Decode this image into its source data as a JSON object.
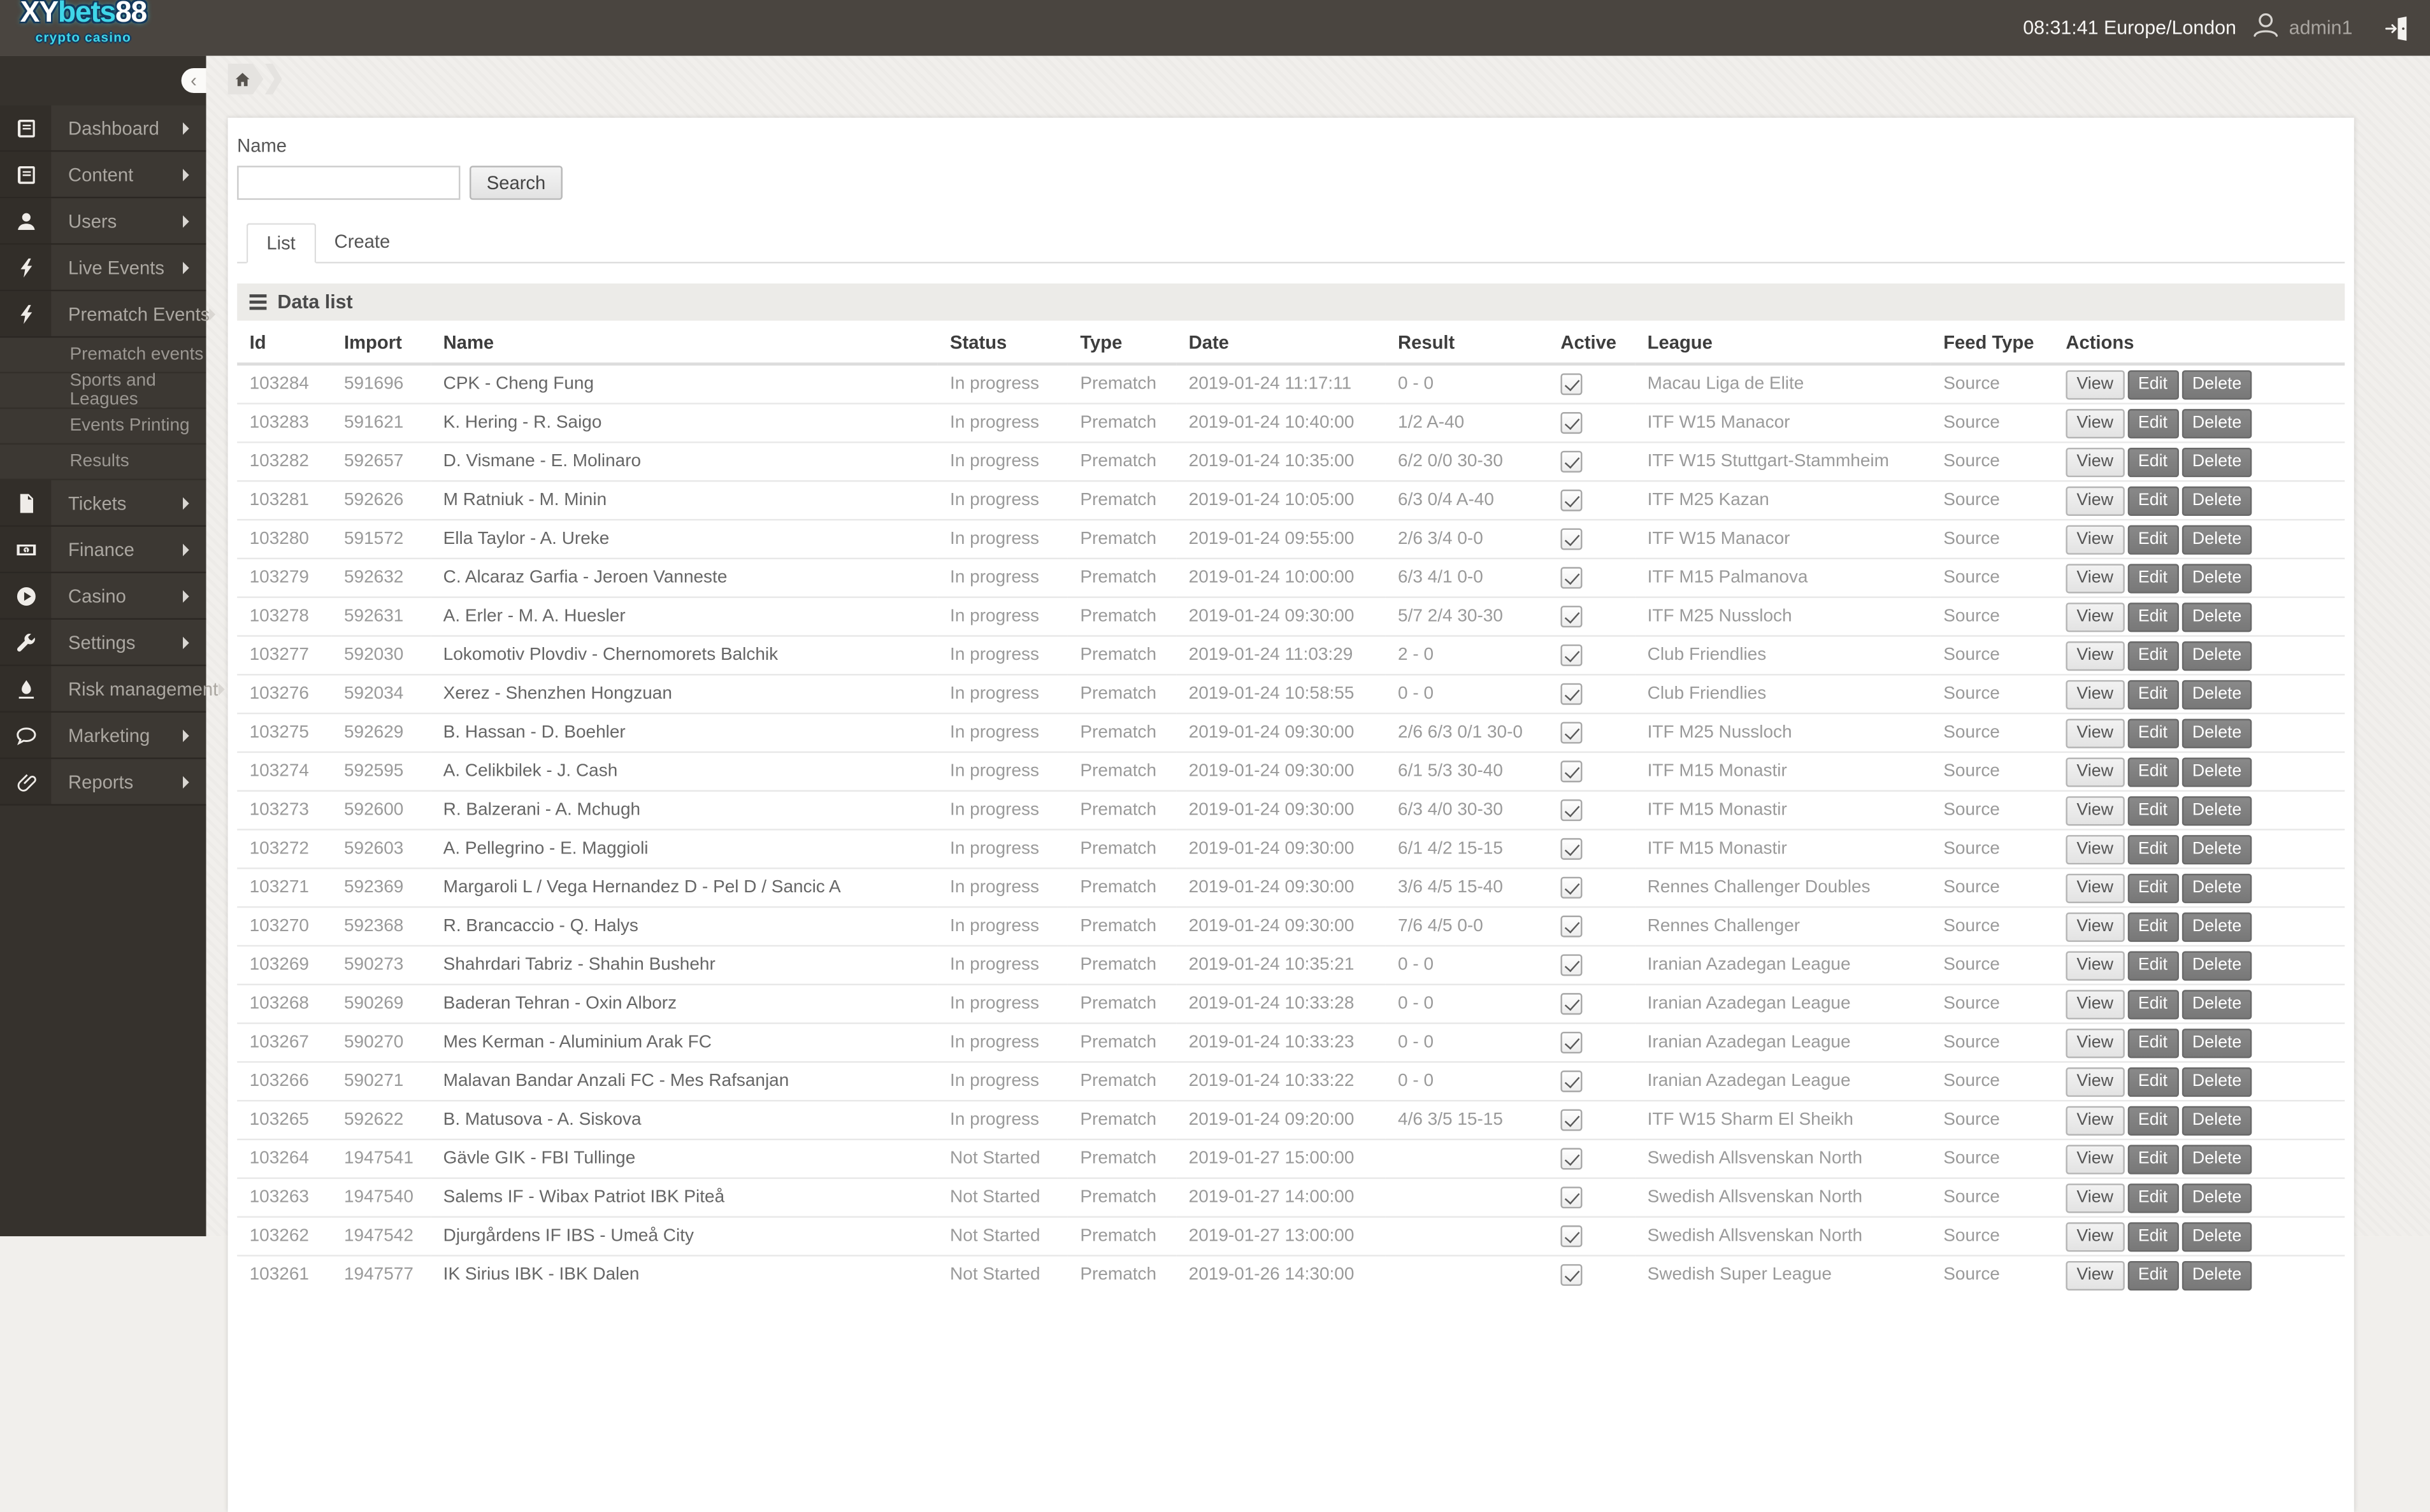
{
  "colors": {
    "accent_cyan": "#3fd6e8",
    "topbar_bg": "#4a4540",
    "sidebar_bg": "#3c3833",
    "panel_bg": "#ffffff",
    "content_bg": "#f1efec"
  },
  "header": {
    "logo": {
      "part1": "XY",
      "part2": "bets",
      "part3": "88",
      "subtitle": "crypto casino"
    },
    "clock": "08:31:41 Europe/London",
    "username": "admin1",
    "icons": [
      "user-avatar-icon",
      "logout-door-icon"
    ]
  },
  "breadcrumb": {
    "home_icon": "home-icon"
  },
  "sidebar": {
    "collapse_glyph": "‹",
    "items": [
      {
        "label": "Dashboard",
        "icon": "book-icon"
      },
      {
        "label": "Content",
        "icon": "book-icon"
      },
      {
        "label": "Users",
        "icon": "user-icon"
      },
      {
        "label": "Live Events",
        "icon": "bolt-icon"
      },
      {
        "label": "Prematch Events",
        "icon": "bolt-icon",
        "submenu": [
          "Prematch events",
          "Sports and Leagues",
          "Events Printing",
          "Results"
        ]
      },
      {
        "label": "Tickets",
        "icon": "document-icon"
      },
      {
        "label": "Finance",
        "icon": "banknote-icon"
      },
      {
        "label": "Casino",
        "icon": "play-icon"
      },
      {
        "label": "Settings",
        "icon": "wrench-icon"
      },
      {
        "label": "Risk management",
        "icon": "flame-icon"
      },
      {
        "label": "Marketing",
        "icon": "chat-icon"
      },
      {
        "label": "Reports",
        "icon": "paperclip-icon"
      }
    ]
  },
  "search_form": {
    "label": "Name",
    "value": "",
    "button": "Search"
  },
  "tabs": [
    {
      "label": "List",
      "active": true
    },
    {
      "label": "Create",
      "active": false
    }
  ],
  "panel": {
    "title": "Data list",
    "menu_icon": "hamburger-icon"
  },
  "table": {
    "columns": [
      "Id",
      "Import",
      "Name",
      "Status",
      "Type",
      "Date",
      "Result",
      "Active",
      "League",
      "Feed Type",
      "Actions"
    ],
    "actions": [
      "View",
      "Edit",
      "Delete"
    ],
    "rows": [
      {
        "id": "103284",
        "import_id": "591696",
        "name": "CPK - Cheng Fung",
        "status": "In progress",
        "type": "Prematch",
        "date": "2019-01-24 11:17:11",
        "result": "0 - 0",
        "active": true,
        "league": "Macau Liga de Elite",
        "feed_type": "Source"
      },
      {
        "id": "103283",
        "import_id": "591621",
        "name": "K. Hering - R. Saigo",
        "status": "In progress",
        "type": "Prematch",
        "date": "2019-01-24 10:40:00",
        "result": "1/2 A-40",
        "active": true,
        "league": "ITF W15 Manacor",
        "feed_type": "Source"
      },
      {
        "id": "103282",
        "import_id": "592657",
        "name": "D. Vismane - E. Molinaro",
        "status": "In progress",
        "type": "Prematch",
        "date": "2019-01-24 10:35:00",
        "result": "6/2 0/0 30-30",
        "active": true,
        "league": "ITF W15 Stuttgart-Stammheim",
        "feed_type": "Source"
      },
      {
        "id": "103281",
        "import_id": "592626",
        "name": "M Ratniuk - M. Minin",
        "status": "In progress",
        "type": "Prematch",
        "date": "2019-01-24 10:05:00",
        "result": "6/3 0/4 A-40",
        "active": true,
        "league": "ITF M25 Kazan",
        "feed_type": "Source"
      },
      {
        "id": "103280",
        "import_id": "591572",
        "name": "Ella Taylor - A. Ureke",
        "status": "In progress",
        "type": "Prematch",
        "date": "2019-01-24 09:55:00",
        "result": "2/6 3/4 0-0",
        "active": true,
        "league": "ITF W15 Manacor",
        "feed_type": "Source"
      },
      {
        "id": "103279",
        "import_id": "592632",
        "name": "C. Alcaraz Garfia - Jeroen Vanneste",
        "status": "In progress",
        "type": "Prematch",
        "date": "2019-01-24 10:00:00",
        "result": "6/3 4/1 0-0",
        "active": true,
        "league": "ITF M15 Palmanova",
        "feed_type": "Source"
      },
      {
        "id": "103278",
        "import_id": "592631",
        "name": "A. Erler - M. A. Huesler",
        "status": "In progress",
        "type": "Prematch",
        "date": "2019-01-24 09:30:00",
        "result": "5/7 2/4 30-30",
        "active": true,
        "league": "ITF M25 Nussloch",
        "feed_type": "Source"
      },
      {
        "id": "103277",
        "import_id": "592030",
        "name": "Lokomotiv Plovdiv - Chernomorets Balchik",
        "status": "In progress",
        "type": "Prematch",
        "date": "2019-01-24 11:03:29",
        "result": "2 - 0",
        "active": true,
        "league": "Club Friendlies",
        "feed_type": "Source"
      },
      {
        "id": "103276",
        "import_id": "592034",
        "name": "Xerez - Shenzhen Hongzuan",
        "status": "In progress",
        "type": "Prematch",
        "date": "2019-01-24 10:58:55",
        "result": "0 - 0",
        "active": true,
        "league": "Club Friendlies",
        "feed_type": "Source"
      },
      {
        "id": "103275",
        "import_id": "592629",
        "name": "B. Hassan - D. Boehler",
        "status": "In progress",
        "type": "Prematch",
        "date": "2019-01-24 09:30:00",
        "result": "2/6 6/3 0/1 30-0",
        "active": true,
        "league": "ITF M25 Nussloch",
        "feed_type": "Source"
      },
      {
        "id": "103274",
        "import_id": "592595",
        "name": "A. Celikbilek - J. Cash",
        "status": "In progress",
        "type": "Prematch",
        "date": "2019-01-24 09:30:00",
        "result": "6/1 5/3 30-40",
        "active": true,
        "league": "ITF M15 Monastir",
        "feed_type": "Source"
      },
      {
        "id": "103273",
        "import_id": "592600",
        "name": "R. Balzerani - A. Mchugh",
        "status": "In progress",
        "type": "Prematch",
        "date": "2019-01-24 09:30:00",
        "result": "6/3 4/0 30-30",
        "active": true,
        "league": "ITF M15 Monastir",
        "feed_type": "Source"
      },
      {
        "id": "103272",
        "import_id": "592603",
        "name": "A. Pellegrino - E. Maggioli",
        "status": "In progress",
        "type": "Prematch",
        "date": "2019-01-24 09:30:00",
        "result": "6/1 4/2 15-15",
        "active": true,
        "league": "ITF M15 Monastir",
        "feed_type": "Source"
      },
      {
        "id": "103271",
        "import_id": "592369",
        "name": "Margaroli L / Vega Hernandez D - Pel D / Sancic A",
        "status": "In progress",
        "type": "Prematch",
        "date": "2019-01-24 09:30:00",
        "result": "3/6 4/5 15-40",
        "active": true,
        "league": "Rennes Challenger Doubles",
        "feed_type": "Source"
      },
      {
        "id": "103270",
        "import_id": "592368",
        "name": "R. Brancaccio - Q. Halys",
        "status": "In progress",
        "type": "Prematch",
        "date": "2019-01-24 09:30:00",
        "result": "7/6 4/5 0-0",
        "active": true,
        "league": "Rennes Challenger",
        "feed_type": "Source"
      },
      {
        "id": "103269",
        "import_id": "590273",
        "name": "Shahrdari Tabriz - Shahin Bushehr",
        "status": "In progress",
        "type": "Prematch",
        "date": "2019-01-24 10:35:21",
        "result": "0 - 0",
        "active": true,
        "league": "Iranian Azadegan League",
        "feed_type": "Source"
      },
      {
        "id": "103268",
        "import_id": "590269",
        "name": "Baderan Tehran - Oxin Alborz",
        "status": "In progress",
        "type": "Prematch",
        "date": "2019-01-24 10:33:28",
        "result": "0 - 0",
        "active": true,
        "league": "Iranian Azadegan League",
        "feed_type": "Source"
      },
      {
        "id": "103267",
        "import_id": "590270",
        "name": "Mes Kerman - Aluminium Arak FC",
        "status": "In progress",
        "type": "Prematch",
        "date": "2019-01-24 10:33:23",
        "result": "0 - 0",
        "active": true,
        "league": "Iranian Azadegan League",
        "feed_type": "Source"
      },
      {
        "id": "103266",
        "import_id": "590271",
        "name": "Malavan Bandar Anzali FC - Mes Rafsanjan",
        "status": "In progress",
        "type": "Prematch",
        "date": "2019-01-24 10:33:22",
        "result": "0 - 0",
        "active": true,
        "league": "Iranian Azadegan League",
        "feed_type": "Source"
      },
      {
        "id": "103265",
        "import_id": "592622",
        "name": "B. Matusova - A. Siskova",
        "status": "In progress",
        "type": "Prematch",
        "date": "2019-01-24 09:20:00",
        "result": "4/6 3/5 15-15",
        "active": true,
        "league": "ITF W15 Sharm El Sheikh",
        "feed_type": "Source"
      },
      {
        "id": "103264",
        "import_id": "1947541",
        "name": "Gävle GIK - FBI Tullinge",
        "status": "Not Started",
        "type": "Prematch",
        "date": "2019-01-27 15:00:00",
        "result": "",
        "active": true,
        "league": "Swedish Allsvenskan North",
        "feed_type": "Source"
      },
      {
        "id": "103263",
        "import_id": "1947540",
        "name": "Salems IF - Wibax Patriot IBK Piteå",
        "status": "Not Started",
        "type": "Prematch",
        "date": "2019-01-27 14:00:00",
        "result": "",
        "active": true,
        "league": "Swedish Allsvenskan North",
        "feed_type": "Source"
      },
      {
        "id": "103262",
        "import_id": "1947542",
        "name": "Djurgårdens IF IBS - Umeå City",
        "status": "Not Started",
        "type": "Prematch",
        "date": "2019-01-27 13:00:00",
        "result": "",
        "active": true,
        "league": "Swedish Allsvenskan North",
        "feed_type": "Source"
      },
      {
        "id": "103261",
        "import_id": "1947577",
        "name": "IK Sirius IBK - IBK Dalen",
        "status": "Not Started",
        "type": "Prematch",
        "date": "2019-01-26 14:30:00",
        "result": "",
        "active": true,
        "league": "Swedish Super League",
        "feed_type": "Source"
      }
    ]
  }
}
